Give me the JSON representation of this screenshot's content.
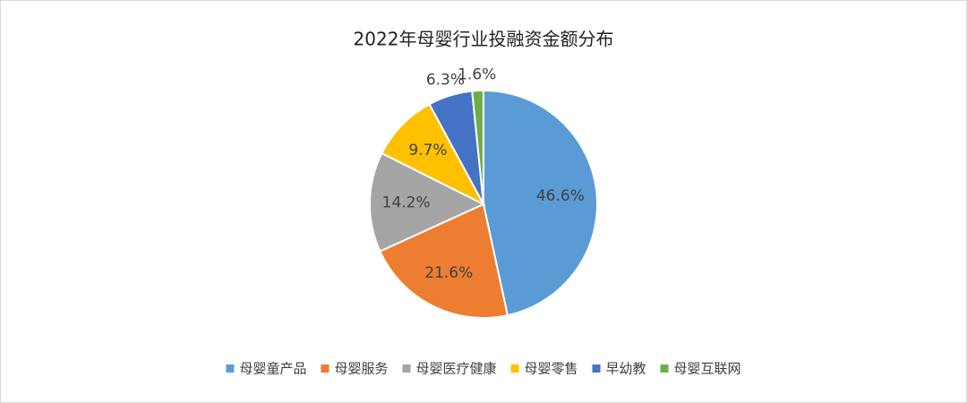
{
  "chart_data": {
    "type": "pie",
    "title": "2022年母婴行业投融资金额分布",
    "categories": [
      "母婴童产品",
      "母婴服务",
      "母婴医疗健康",
      "母婴零售",
      "早幼教",
      "母婴互联网"
    ],
    "values": [
      46.6,
      21.6,
      14.2,
      9.7,
      6.3,
      1.6
    ],
    "value_labels": [
      "46.6%",
      "21.6%",
      "14.2%",
      "9.7%",
      "6.3%",
      "1.6%"
    ],
    "colors": [
      "#5b9bd5",
      "#ed7d31",
      "#a5a5a5",
      "#ffc000",
      "#4472c4",
      "#70ad47"
    ],
    "legend": "bottom"
  }
}
